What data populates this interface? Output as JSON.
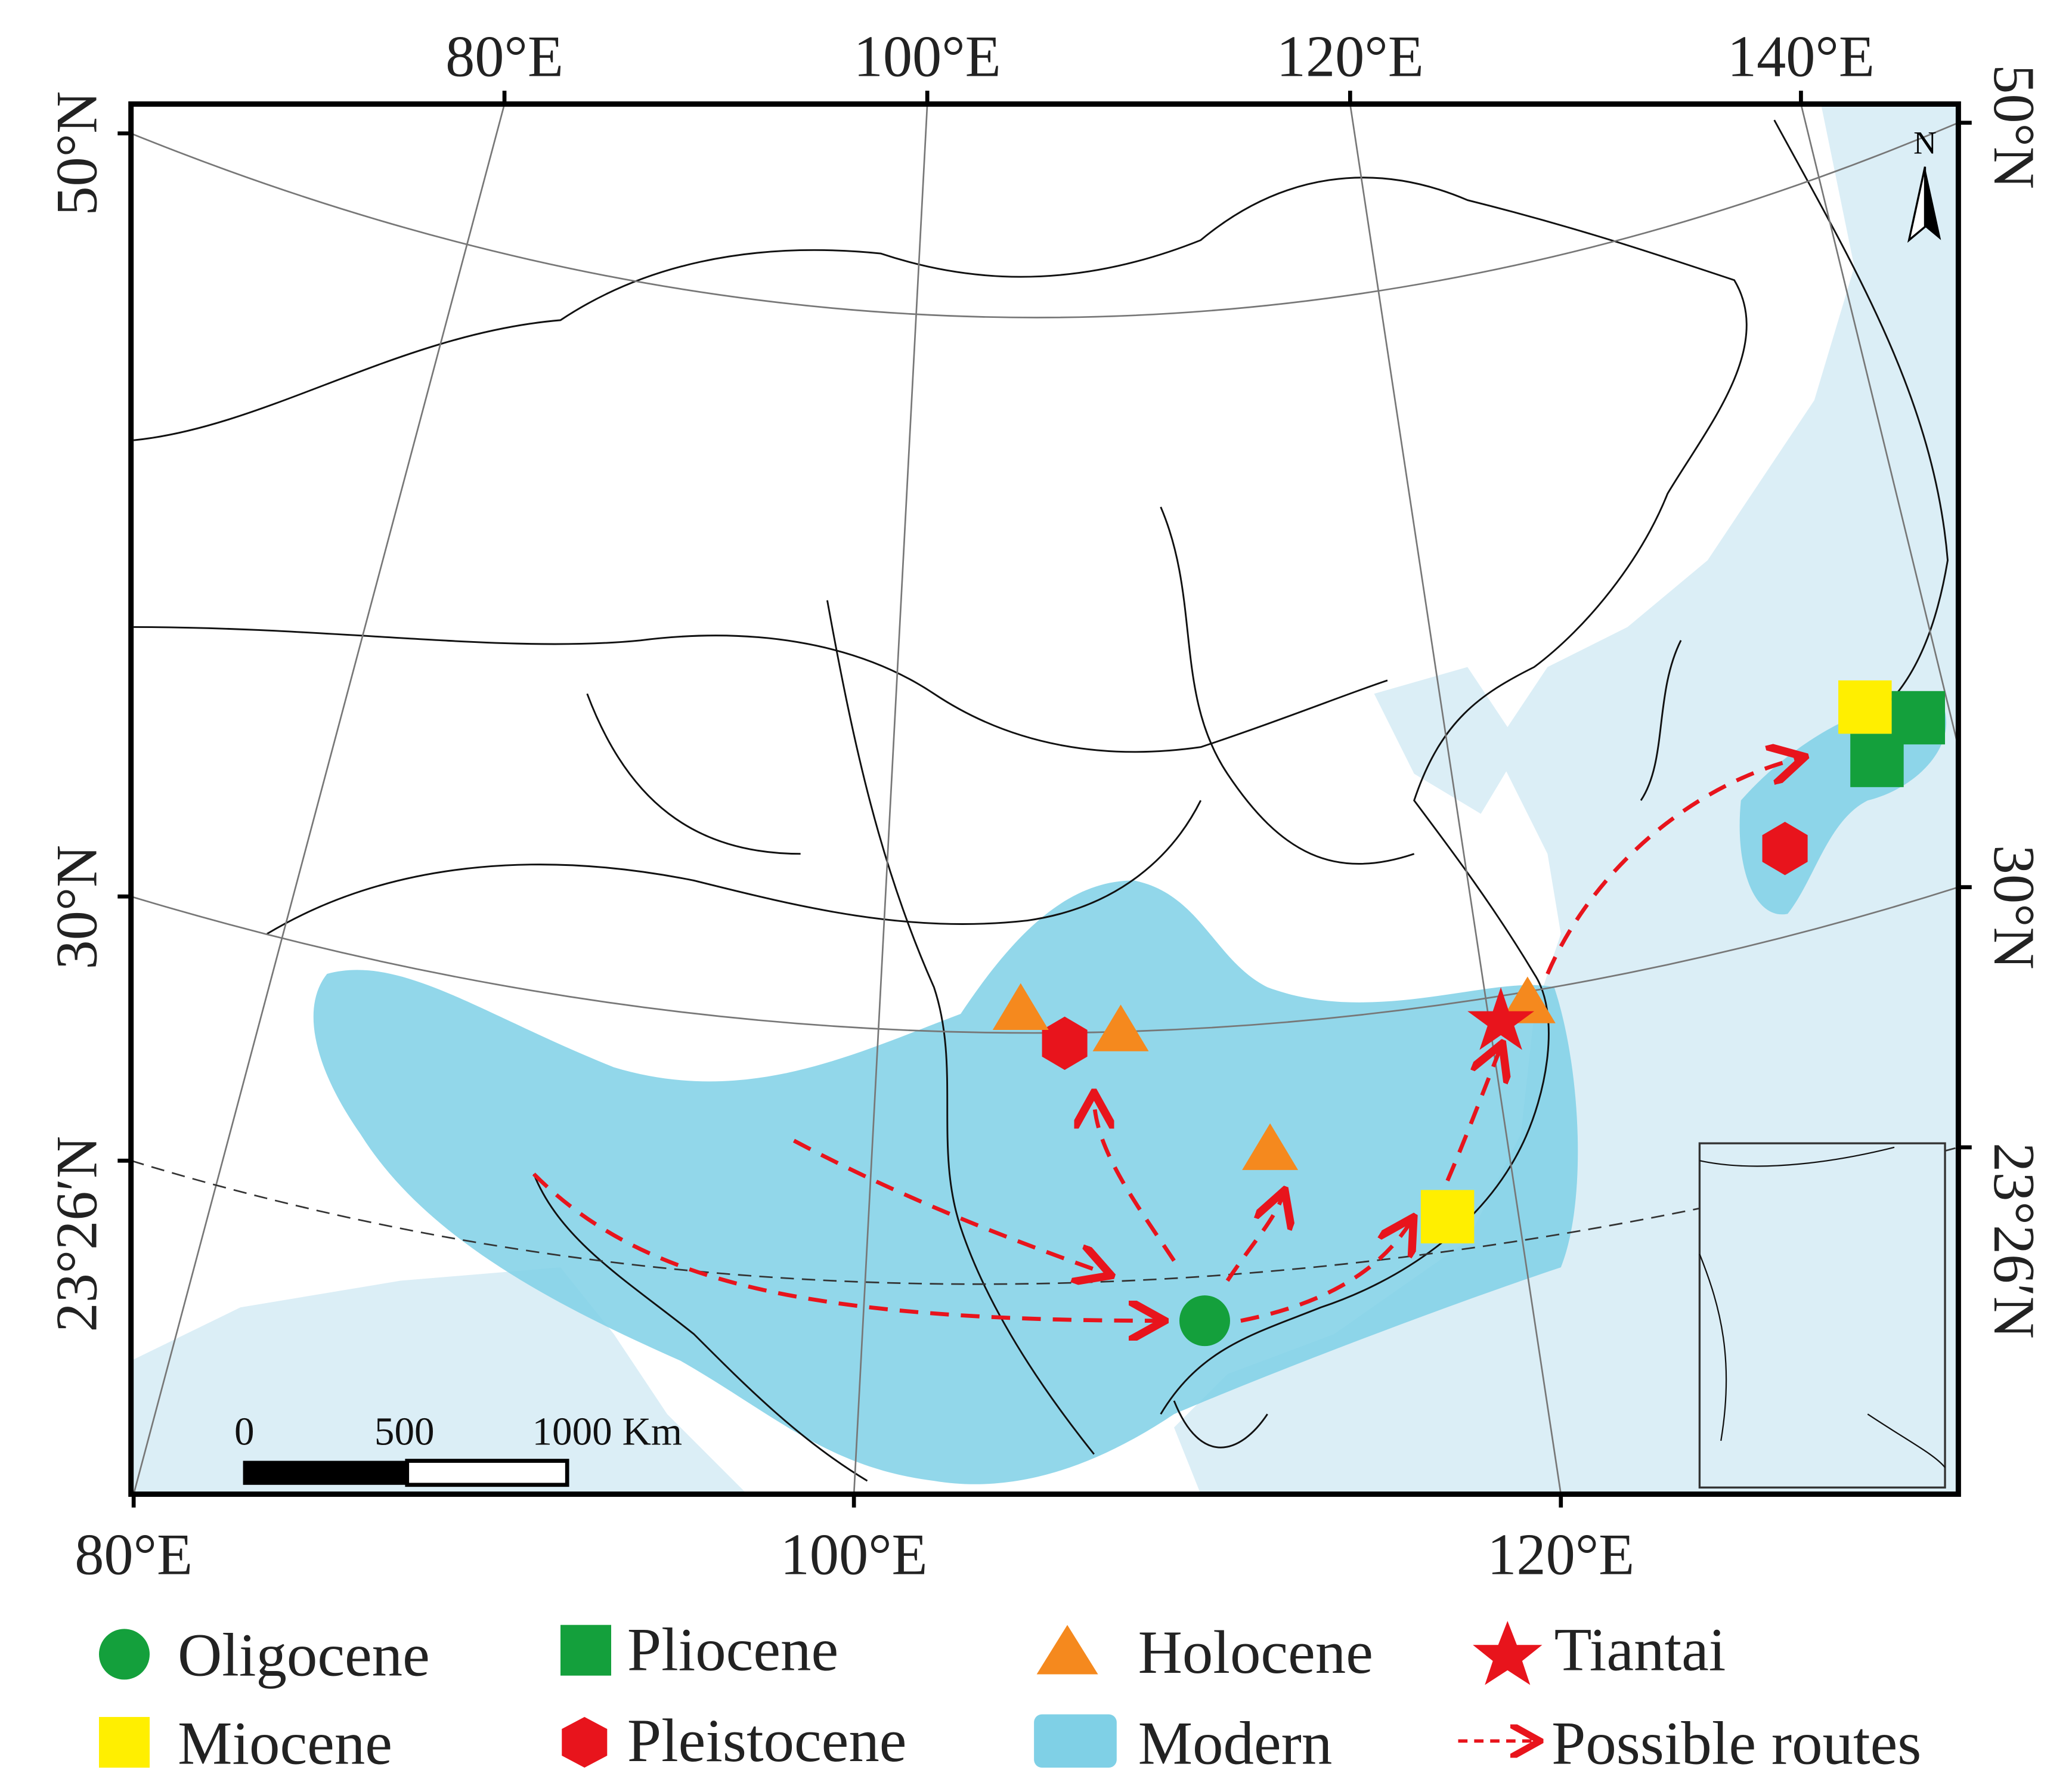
{
  "map": {
    "top_labels": [
      "80°E",
      "100°E",
      "120°E",
      "140°E"
    ],
    "bottom_labels": [
      "80°E",
      "100°E",
      "120°E"
    ],
    "left_labels": [
      "50°N",
      "30°N",
      "23°26′N"
    ],
    "right_labels": [
      "50°N",
      "30°N",
      "23°26′N"
    ],
    "scale_bar": [
      "0",
      "500",
      "1000 Km"
    ],
    "north": "N"
  },
  "legend": [
    "Oligocene",
    "Pliocene",
    "Holocene",
    "Tiantai",
    "Miocene",
    "Pleistocene",
    "Modern",
    "Possible routes"
  ]
}
